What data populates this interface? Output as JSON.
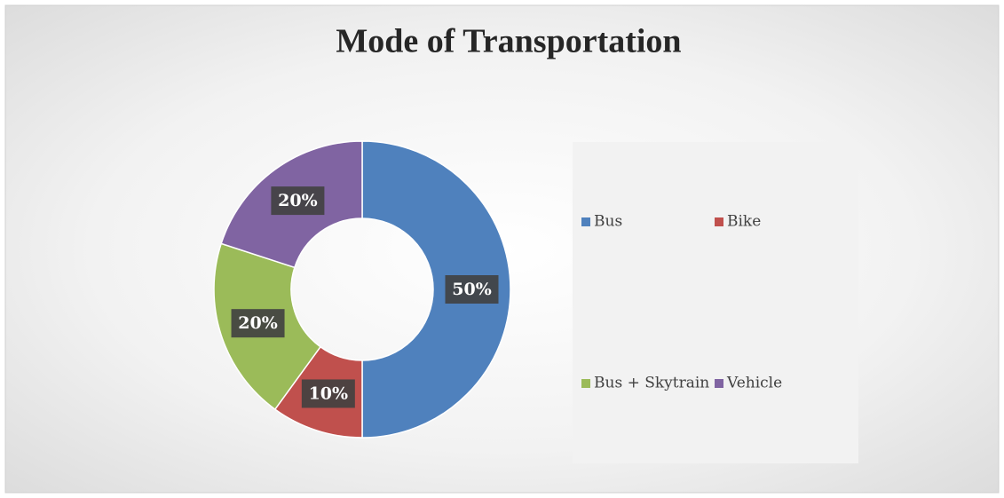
{
  "chart_data": {
    "type": "donut",
    "title": "Mode of Transportation",
    "categories": [
      "Bus",
      "Bike",
      "Bus + Skytrain",
      "Vehicle"
    ],
    "values": [
      50,
      10,
      20,
      20
    ],
    "value_labels": [
      "50%",
      "10%",
      "20%",
      "20%"
    ],
    "colors": [
      "#4f81bd",
      "#c0504d",
      "#9bbb59",
      "#8064a2"
    ],
    "legend": "right"
  }
}
